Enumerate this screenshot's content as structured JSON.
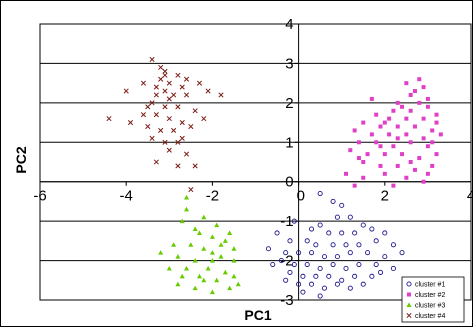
{
  "chart_data": {
    "type": "scatter",
    "title": "",
    "xlabel": "PC1",
    "ylabel": "PC2",
    "xlim": [
      -6,
      4
    ],
    "ylim": [
      -3,
      4
    ],
    "x_ticks": [
      "-6",
      "-4",
      "-2",
      "0",
      "2",
      "4"
    ],
    "y_ticks": [
      "-3",
      "-2",
      "-1",
      "0",
      "1",
      "2",
      "3",
      "4"
    ],
    "grid": "horizontal",
    "legend_placement": "bottom-right",
    "series": [
      {
        "name": "cluster #1",
        "color": "#1f1a8c",
        "marker": "open-circle",
        "points": [
          [
            0.5,
            -0.3
          ],
          [
            0.8,
            -0.5
          ],
          [
            1.0,
            -0.6
          ],
          [
            0.9,
            -0.9
          ],
          [
            1.2,
            -0.9
          ],
          [
            1.5,
            -1.1
          ],
          [
            0.5,
            -1.1
          ],
          [
            0.7,
            -1.3
          ],
          [
            1.0,
            -1.3
          ],
          [
            1.3,
            -1.3
          ],
          [
            1.7,
            -1.2
          ],
          [
            2.0,
            -1.3
          ],
          [
            -0.5,
            -1.3
          ],
          [
            -0.2,
            -1.5
          ],
          [
            0.2,
            -1.5
          ],
          [
            0.4,
            -1.6
          ],
          [
            0.8,
            -1.6
          ],
          [
            1.1,
            -1.6
          ],
          [
            1.4,
            -1.6
          ],
          [
            1.8,
            -1.5
          ],
          [
            2.2,
            -1.6
          ],
          [
            -0.7,
            -1.7
          ],
          [
            -0.3,
            -1.8
          ],
          [
            0.0,
            -1.8
          ],
          [
            0.3,
            -1.8
          ],
          [
            0.6,
            -1.9
          ],
          [
            0.9,
            -1.9
          ],
          [
            1.2,
            -1.8
          ],
          [
            1.6,
            -1.8
          ],
          [
            2.0,
            -1.9
          ],
          [
            2.4,
            -1.8
          ],
          [
            -0.4,
            -2.0
          ],
          [
            -0.1,
            -2.1
          ],
          [
            0.2,
            -2.1
          ],
          [
            0.5,
            -2.2
          ],
          [
            0.8,
            -2.1
          ],
          [
            1.1,
            -2.2
          ],
          [
            1.4,
            -2.1
          ],
          [
            1.8,
            -2.1
          ],
          [
            2.2,
            -2.2
          ],
          [
            -0.2,
            -2.3
          ],
          [
            0.1,
            -2.4
          ],
          [
            0.4,
            -2.4
          ],
          [
            0.7,
            -2.4
          ],
          [
            1.0,
            -2.5
          ],
          [
            1.3,
            -2.4
          ],
          [
            1.7,
            -2.4
          ],
          [
            0.0,
            -2.6
          ],
          [
            0.3,
            -2.6
          ],
          [
            0.6,
            -2.7
          ],
          [
            0.9,
            -2.6
          ],
          [
            1.2,
            -2.7
          ],
          [
            0.1,
            -2.8
          ],
          [
            0.5,
            -2.9
          ],
          [
            -0.3,
            -2.5
          ],
          [
            -0.6,
            -2.1
          ],
          [
            1.5,
            -2.6
          ],
          [
            1.9,
            -2.3
          ],
          [
            0.3,
            -1.2
          ],
          [
            -0.1,
            -1.0
          ]
        ]
      },
      {
        "name": "cluster #2",
        "color": "#e040c8",
        "marker": "square",
        "points": [
          [
            2.5,
            2.5
          ],
          [
            2.9,
            2.4
          ],
          [
            2.6,
            2.2
          ],
          [
            3.0,
            2.1
          ],
          [
            2.3,
            2.0
          ],
          [
            2.8,
            2.0
          ],
          [
            1.7,
            2.1
          ],
          [
            2.2,
            1.8
          ],
          [
            2.6,
            1.8
          ],
          [
            3.0,
            1.9
          ],
          [
            1.8,
            1.7
          ],
          [
            2.1,
            1.6
          ],
          [
            2.5,
            1.6
          ],
          [
            2.9,
            1.6
          ],
          [
            3.2,
            1.5
          ],
          [
            1.5,
            1.5
          ],
          [
            1.9,
            1.4
          ],
          [
            2.3,
            1.4
          ],
          [
            2.7,
            1.4
          ],
          [
            3.1,
            1.3
          ],
          [
            1.3,
            1.3
          ],
          [
            1.7,
            1.2
          ],
          [
            2.1,
            1.2
          ],
          [
            2.5,
            1.2
          ],
          [
            2.9,
            1.1
          ],
          [
            3.3,
            1.2
          ],
          [
            1.4,
            1.0
          ],
          [
            1.8,
            1.0
          ],
          [
            2.2,
            0.9
          ],
          [
            2.6,
            1.0
          ],
          [
            3.0,
            0.9
          ],
          [
            1.2,
            0.8
          ],
          [
            1.6,
            0.7
          ],
          [
            2.0,
            0.7
          ],
          [
            2.4,
            0.7
          ],
          [
            2.8,
            0.6
          ],
          [
            3.2,
            0.7
          ],
          [
            1.5,
            0.5
          ],
          [
            1.9,
            0.4
          ],
          [
            2.3,
            0.4
          ],
          [
            2.7,
            0.3
          ],
          [
            3.1,
            0.4
          ],
          [
            1.1,
            0.2
          ],
          [
            1.5,
            0.1
          ],
          [
            2.0,
            0.2
          ],
          [
            2.5,
            0.1
          ],
          [
            2.9,
            0.0
          ],
          [
            1.3,
            -0.1
          ],
          [
            2.2,
            -0.1
          ],
          [
            3.0,
            0.2
          ],
          [
            2.4,
            1.9
          ],
          [
            2.7,
            2.3
          ],
          [
            3.2,
            1.7
          ],
          [
            1.4,
            0.6
          ],
          [
            2.0,
            1.5
          ],
          [
            2.6,
            0.5
          ],
          [
            3.1,
            1.0
          ],
          [
            2.8,
            2.6
          ],
          [
            1.9,
            0.9
          ],
          [
            2.3,
            1.1
          ]
        ]
      },
      {
        "name": "cluster #3",
        "color": "#66cc00",
        "marker": "triangle",
        "points": [
          [
            -2.6,
            -0.7
          ],
          [
            -2.2,
            -0.9
          ],
          [
            -2.7,
            -1.0
          ],
          [
            -1.9,
            -1.1
          ],
          [
            -2.4,
            -1.2
          ],
          [
            -1.6,
            -1.3
          ],
          [
            -2.0,
            -1.4
          ],
          [
            -1.7,
            -1.5
          ],
          [
            -2.9,
            -1.6
          ],
          [
            -2.5,
            -1.6
          ],
          [
            -2.2,
            -1.7
          ],
          [
            -3.2,
            -1.8
          ],
          [
            -2.0,
            -1.8
          ],
          [
            -1.5,
            -1.7
          ],
          [
            -2.8,
            -1.9
          ],
          [
            -2.4,
            -2.0
          ],
          [
            -1.8,
            -1.9
          ],
          [
            -1.5,
            -2.0
          ],
          [
            -2.6,
            -2.2
          ],
          [
            -2.1,
            -2.2
          ],
          [
            -1.7,
            -2.3
          ],
          [
            -3.0,
            -2.2
          ],
          [
            -2.3,
            -2.4
          ],
          [
            -1.9,
            -2.5
          ],
          [
            -1.5,
            -2.4
          ],
          [
            -2.8,
            -2.6
          ],
          [
            -2.4,
            -2.7
          ],
          [
            -2.0,
            -2.8
          ],
          [
            -1.6,
            -2.7
          ],
          [
            -2.2,
            -2.5
          ],
          [
            -2.6,
            -0.4
          ],
          [
            -1.8,
            -1.6
          ],
          [
            -2.7,
            -2.4
          ],
          [
            -1.4,
            -2.6
          ],
          [
            -2.3,
            -1.3
          ],
          [
            -2.0,
            -2.0
          ]
        ]
      },
      {
        "name": "cluster #4",
        "color": "#7b1a12",
        "marker": "cross",
        "points": [
          [
            -3.4,
            3.1
          ],
          [
            -3.1,
            2.8
          ],
          [
            -2.8,
            2.7
          ],
          [
            -2.6,
            2.6
          ],
          [
            -3.2,
            2.6
          ],
          [
            -3.0,
            2.5
          ],
          [
            -2.3,
            2.5
          ],
          [
            -3.3,
            2.4
          ],
          [
            -3.1,
            2.3
          ],
          [
            -2.7,
            2.4
          ],
          [
            -2.1,
            2.3
          ],
          [
            -1.8,
            2.2
          ],
          [
            -4.0,
            2.3
          ],
          [
            -3.3,
            2.2
          ],
          [
            -3.0,
            2.1
          ],
          [
            -2.6,
            2.2
          ],
          [
            -3.4,
            2.0
          ],
          [
            -3.1,
            1.9
          ],
          [
            -2.8,
            1.9
          ],
          [
            -2.4,
            1.8
          ],
          [
            -3.6,
            1.7
          ],
          [
            -3.3,
            1.7
          ],
          [
            -3.0,
            1.6
          ],
          [
            -2.7,
            1.5
          ],
          [
            -3.9,
            1.5
          ],
          [
            -4.4,
            1.6
          ],
          [
            -3.5,
            1.4
          ],
          [
            -3.2,
            1.3
          ],
          [
            -2.9,
            1.3
          ],
          [
            -2.5,
            1.4
          ],
          [
            -3.4,
            1.1
          ],
          [
            -3.1,
            1.0
          ],
          [
            -2.7,
            1.1
          ],
          [
            -3.0,
            0.8
          ],
          [
            -2.6,
            0.7
          ],
          [
            -3.3,
            0.5
          ],
          [
            -2.8,
            0.4
          ],
          [
            -2.4,
            0.4
          ],
          [
            -2.5,
            -0.2
          ],
          [
            -3.1,
            2.7
          ],
          [
            -2.9,
            2.2
          ],
          [
            -3.5,
            1.9
          ],
          [
            -2.2,
            1.6
          ],
          [
            -3.2,
            2.9
          ],
          [
            -2.8,
            1.0
          ],
          [
            -3.6,
            2.5
          ]
        ]
      }
    ]
  }
}
